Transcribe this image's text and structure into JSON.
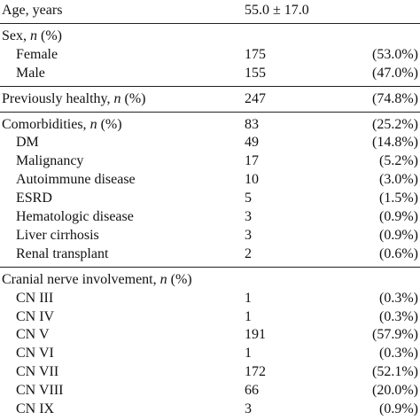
{
  "rows": [
    {
      "label": "Age, years",
      "value": "55.0 ± 17.0",
      "pct": "",
      "indent": false,
      "rule_before": false
    },
    {
      "label": "Sex, ",
      "label_italic": "n",
      "label_suffix": " (%)",
      "value": "",
      "pct": "",
      "indent": false,
      "rule_before": true
    },
    {
      "label": "Female",
      "value": "175",
      "pct": "(53.0%)",
      "indent": true,
      "rule_before": false
    },
    {
      "label": "Male",
      "value": "155",
      "pct": "(47.0%)",
      "indent": true,
      "rule_before": false
    },
    {
      "label": "Previously healthy, ",
      "label_italic": "n",
      "label_suffix": " (%)",
      "value": "247",
      "pct": "(74.8%)",
      "indent": false,
      "rule_before": true
    },
    {
      "label": "Comorbidities, ",
      "label_italic": "n",
      "label_suffix": " (%)",
      "value": "83",
      "pct": "(25.2%)",
      "indent": false,
      "rule_before": true
    },
    {
      "label": "DM",
      "value": "49",
      "pct": "(14.8%)",
      "indent": true,
      "rule_before": false
    },
    {
      "label": "Malignancy",
      "value": "17",
      "pct": "(5.2%)",
      "indent": true,
      "rule_before": false
    },
    {
      "label": "Autoimmune disease",
      "value": "10",
      "pct": "(3.0%)",
      "indent": true,
      "rule_before": false
    },
    {
      "label": "ESRD",
      "value": "5",
      "pct": "(1.5%)",
      "indent": true,
      "rule_before": false
    },
    {
      "label": "Hematologic disease",
      "value": "3",
      "pct": "(0.9%)",
      "indent": true,
      "rule_before": false
    },
    {
      "label": "Liver cirrhosis",
      "value": "3",
      "pct": "(0.9%)",
      "indent": true,
      "rule_before": false
    },
    {
      "label": "Renal transplant",
      "value": "2",
      "pct": "(0.6%)",
      "indent": true,
      "rule_before": false
    },
    {
      "label": "Cranial nerve involvement, ",
      "label_italic": "n",
      "label_suffix": " (%)",
      "value": "",
      "pct": "",
      "indent": false,
      "rule_before": true
    },
    {
      "label": "CN III",
      "value": "1",
      "pct": "(0.3%)",
      "indent": true,
      "rule_before": false
    },
    {
      "label": "CN IV",
      "value": "1",
      "pct": "(0.3%)",
      "indent": true,
      "rule_before": false
    },
    {
      "label": "CN V",
      "value": "191",
      "pct": "(57.9%)",
      "indent": true,
      "rule_before": false
    },
    {
      "label": "CN VI",
      "value": "1",
      "pct": "(0.3%)",
      "indent": true,
      "rule_before": false
    },
    {
      "label": "CN VII",
      "value": "172",
      "pct": "(52.1%)",
      "indent": true,
      "rule_before": false
    },
    {
      "label": "CN VIII",
      "value": "66",
      "pct": "(20.0%)",
      "indent": true,
      "rule_before": false
    },
    {
      "label": "CN IX",
      "value": "3",
      "pct": "(0.9%)",
      "indent": true,
      "rule_before": false
    }
  ]
}
